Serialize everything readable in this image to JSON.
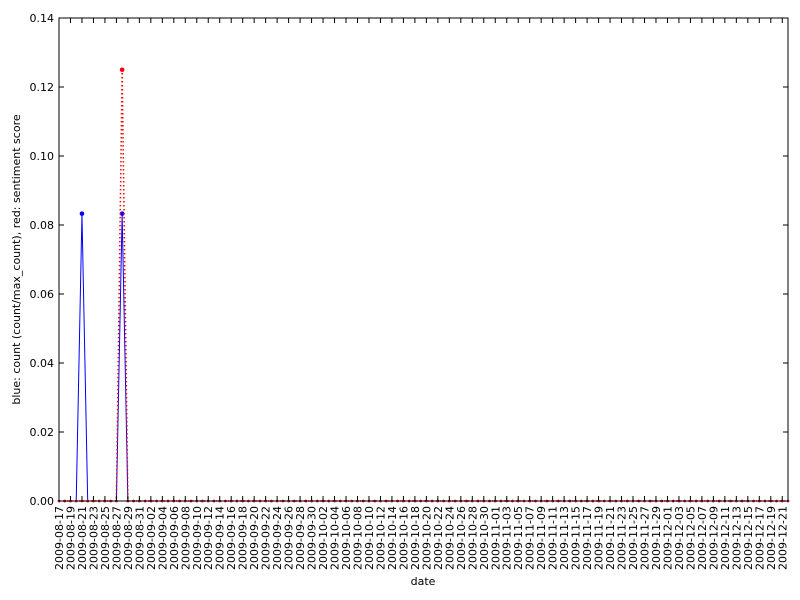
{
  "chart_data": {
    "type": "line",
    "xlabel": "date",
    "ylabel": "blue: count (count/max_count), red: sentiment score",
    "x_start": "2009-08-17",
    "x_end": "2009-12-22",
    "x_tick_labels": [
      "2009-08-17",
      "2009-08-19",
      "2009-08-21",
      "2009-08-23",
      "2009-08-25",
      "2009-08-27",
      "2009-08-29",
      "2009-08-31",
      "2009-09-02",
      "2009-09-04",
      "2009-09-06",
      "2009-09-08",
      "2009-09-10",
      "2009-09-12",
      "2009-09-14",
      "2009-09-16",
      "2009-09-18",
      "2009-09-20",
      "2009-09-22",
      "2009-09-24",
      "2009-09-26",
      "2009-09-28",
      "2009-09-30",
      "2009-10-02",
      "2009-10-04",
      "2009-10-06",
      "2009-10-08",
      "2009-10-10",
      "2009-10-12",
      "2009-10-14",
      "2009-10-16",
      "2009-10-18",
      "2009-10-20",
      "2009-10-22",
      "2009-10-24",
      "2009-10-26",
      "2009-10-28",
      "2009-10-30",
      "2009-11-01",
      "2009-11-03",
      "2009-11-05",
      "2009-11-07",
      "2009-11-09",
      "2009-11-11",
      "2009-11-13",
      "2009-11-15",
      "2009-11-17",
      "2009-11-19",
      "2009-11-21",
      "2009-11-23",
      "2009-11-25",
      "2009-11-27",
      "2009-11-29",
      "2009-12-01",
      "2009-12-03",
      "2009-12-05",
      "2009-12-07",
      "2009-12-09",
      "2009-12-11",
      "2009-12-13",
      "2009-12-15",
      "2009-12-17",
      "2009-12-19",
      "2009-12-21"
    ],
    "y_ticks": [
      "0.00",
      "0.02",
      "0.04",
      "0.06",
      "0.08",
      "0.10",
      "0.12",
      "0.14"
    ],
    "ylim": [
      0,
      0.14
    ],
    "grid": false,
    "series": [
      {
        "color": "#0000ff",
        "linestyle": "solid",
        "points": [
          {
            "x": "2009-08-21",
            "y": 0.0833
          },
          {
            "x": "2009-08-28",
            "y": 0.0833
          }
        ]
      },
      {
        "color": "#ff0000",
        "linestyle": "dotted",
        "points": [
          {
            "x": "2009-08-28",
            "y": 0.125
          }
        ]
      }
    ]
  }
}
